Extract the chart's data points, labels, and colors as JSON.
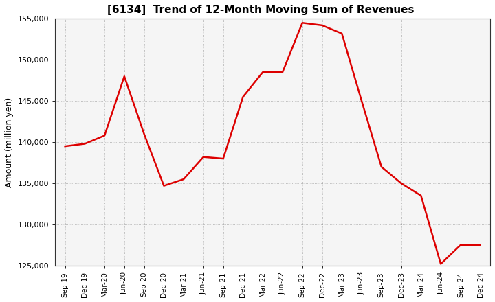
{
  "title": "[6134]  Trend of 12-Month Moving Sum of Revenues",
  "ylabel": "Amount (million yen)",
  "line_color": "#dd0000",
  "line_width": 1.8,
  "background_color": "#ffffff",
  "plot_bg_color": "#f5f5f5",
  "grid_color": "#999999",
  "ylim": [
    125000,
    155000
  ],
  "yticks": [
    125000,
    130000,
    135000,
    140000,
    145000,
    150000,
    155000
  ],
  "x_labels": [
    "Sep-19",
    "Dec-19",
    "Mar-20",
    "Jun-20",
    "Sep-20",
    "Dec-20",
    "Mar-21",
    "Jun-21",
    "Sep-21",
    "Dec-21",
    "Mar-22",
    "Jun-22",
    "Sep-22",
    "Dec-22",
    "Mar-23",
    "Jun-23",
    "Sep-23",
    "Dec-23",
    "Mar-24",
    "Jun-24",
    "Sep-24",
    "Dec-24"
  ],
  "values": [
    139500,
    139800,
    140800,
    148000,
    141000,
    134700,
    135500,
    138200,
    138000,
    145500,
    148500,
    148500,
    154500,
    154200,
    153200,
    145000,
    137000,
    135000,
    133500,
    125200,
    127500,
    127500
  ]
}
